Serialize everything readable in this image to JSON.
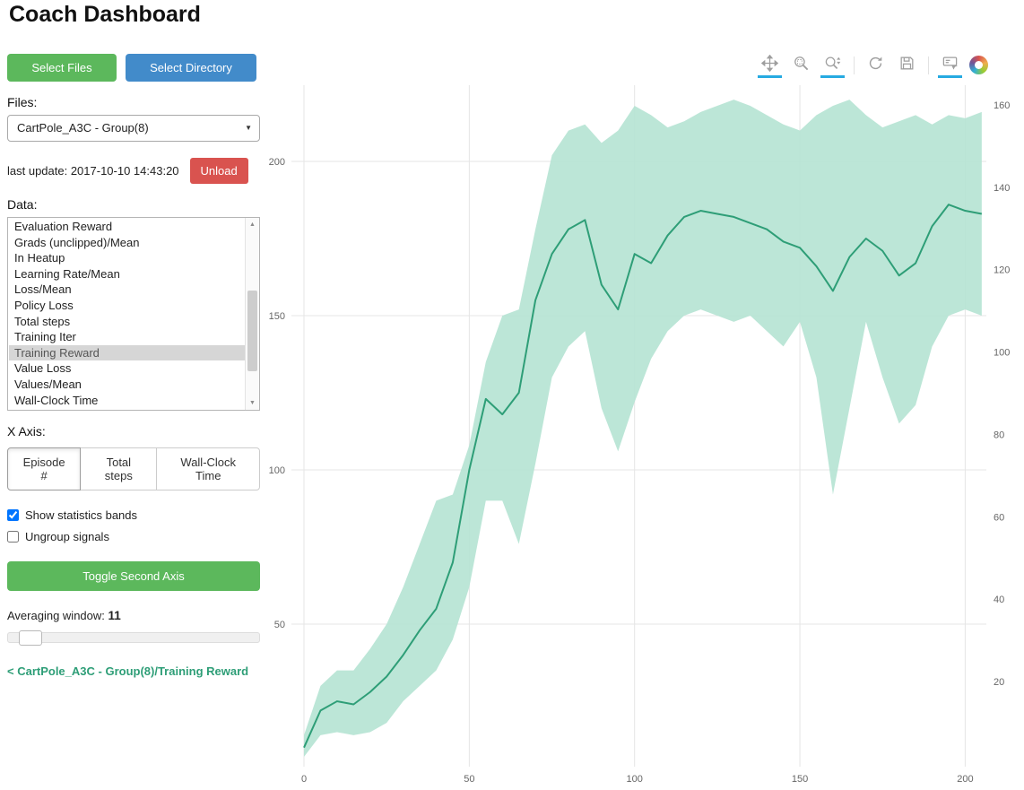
{
  "title": "Coach Dashboard",
  "sidebar": {
    "select_files": "Select Files",
    "select_directory": "Select Directory",
    "files_label": "Files:",
    "files_selected": "CartPole_A3C - Group(8)",
    "dropdown_caret": "▼",
    "last_update": "last update: 2017-10-10 14:43:20",
    "unload": "Unload",
    "data_label": "Data:",
    "data_items": [
      "Evaluation Reward",
      "Grads (unclipped)/Mean",
      "In Heatup",
      "Learning Rate/Mean",
      "Loss/Mean",
      "Policy Loss",
      "Total steps",
      "Training Iter",
      "Training Reward",
      "Value Loss",
      "Values/Mean",
      "Wall-Clock Time"
    ],
    "selected_item": "Training Reward",
    "scroll_up_glyph": "▲",
    "scroll_down_glyph": "▼",
    "xaxis_label": "X Axis:",
    "xaxis_options": [
      "Episode #",
      "Total steps",
      "Wall-Clock Time"
    ],
    "xaxis_selected": "Episode #",
    "checkboxes": [
      {
        "label": "Show statistics bands",
        "checked": true
      },
      {
        "label": "Ungroup signals",
        "checked": false
      }
    ],
    "toggle_second_axis": "Toggle Second Axis",
    "averaging_label": "Averaging window:",
    "averaging_value": "11",
    "breadcrumb": "< CartPole_A3C - Group(8)/Training Reward"
  },
  "toolbar": {
    "icons": [
      {
        "name": "pan",
        "active": true
      },
      {
        "name": "box-zoom",
        "active": false
      },
      {
        "name": "wheel-zoom",
        "active": true
      },
      {
        "name": "reset",
        "active": false
      },
      {
        "name": "save",
        "active": false
      },
      {
        "name": "hover",
        "active": true
      },
      {
        "name": "bokeh-logo",
        "active": false
      }
    ]
  },
  "colors": {
    "accent_green": "#5cb85c",
    "accent_blue": "#428bca",
    "danger_red": "#d9534f",
    "link_teal": "#2e9e77",
    "tool_active_blue": "#26aae1",
    "band": "#b5e3d3",
    "line": "#2e9e77",
    "grid": "#e5e5e5"
  },
  "chart_data": {
    "type": "line",
    "title": "",
    "xlabel": "",
    "ylabel": "",
    "legend": "none",
    "grid": true,
    "x_ticks": [
      0,
      50,
      100,
      150,
      200
    ],
    "left_ticks": [
      50,
      100,
      150,
      200
    ],
    "right_ticks": [
      20,
      40,
      60,
      80,
      100,
      120,
      140,
      160
    ],
    "xlim": [
      -3.8,
      206.4
    ],
    "ylim_left": [
      3.8,
      224.7
    ],
    "ylim_right": [
      -0.7,
      164.8
    ],
    "x": [
      0,
      5,
      10,
      15,
      20,
      25,
      30,
      35,
      40,
      45,
      50,
      55,
      60,
      65,
      70,
      75,
      80,
      85,
      90,
      95,
      100,
      105,
      110,
      115,
      120,
      125,
      130,
      135,
      140,
      145,
      150,
      155,
      160,
      165,
      170,
      175,
      180,
      185,
      190,
      195,
      200,
      205
    ],
    "series": [
      {
        "name": "Training Reward (mean)",
        "role": "line",
        "values": [
          10,
          22,
          25,
          24,
          28,
          33,
          40,
          48,
          55,
          70,
          100,
          123,
          118,
          125,
          155,
          170,
          178,
          181,
          160,
          152,
          170,
          167,
          176,
          182,
          184,
          183,
          182,
          180,
          178,
          174,
          172,
          166,
          158,
          169,
          175,
          171,
          163,
          167,
          179,
          186,
          184,
          183
        ]
      },
      {
        "name": "Training Reward (band upper)",
        "role": "band-upper",
        "values": [
          14,
          30,
          35,
          35,
          42,
          50,
          62,
          76,
          90,
          92,
          108,
          135,
          150,
          152,
          178,
          202,
          210,
          212,
          206,
          210,
          218,
          215,
          211,
          213,
          216,
          218,
          220,
          218,
          215,
          212,
          210,
          215,
          218,
          220,
          215,
          211,
          213,
          215,
          212,
          215,
          214,
          216
        ]
      },
      {
        "name": "Training Reward (band lower)",
        "role": "band-lower",
        "values": [
          7,
          14,
          15,
          14,
          15,
          18,
          25,
          30,
          35,
          45,
          62,
          90,
          90,
          76,
          102,
          130,
          140,
          145,
          120,
          106,
          122,
          136,
          145,
          150,
          152,
          150,
          148,
          150,
          145,
          140,
          148,
          130,
          92,
          120,
          148,
          130,
          115,
          121,
          140,
          150,
          152,
          150
        ]
      }
    ]
  }
}
